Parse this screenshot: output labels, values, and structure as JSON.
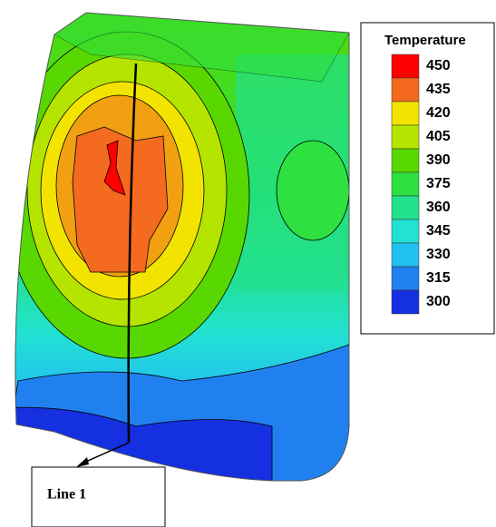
{
  "legend": {
    "title": "Temperature",
    "entries": [
      {
        "value": 450,
        "color": "#ff0000"
      },
      {
        "value": 435,
        "color": "#f46a1e"
      },
      {
        "value": 420,
        "color": "#f2e400"
      },
      {
        "value": 405,
        "color": "#b4e400"
      },
      {
        "value": 390,
        "color": "#58d800"
      },
      {
        "value": 375,
        "color": "#2ee040"
      },
      {
        "value": 360,
        "color": "#22e08c"
      },
      {
        "value": 345,
        "color": "#22e2d2"
      },
      {
        "value": 330,
        "color": "#22c0f0"
      },
      {
        "value": 315,
        "color": "#2080f0"
      },
      {
        "value": 300,
        "color": "#1430e0"
      }
    ]
  },
  "annotation": {
    "label": "Line 1"
  }
}
